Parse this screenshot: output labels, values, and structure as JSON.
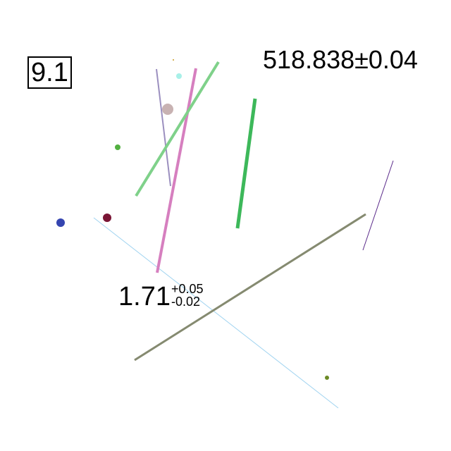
{
  "boxed_label": "9.1",
  "top_value": "518.838±0.04",
  "measurement": {
    "value": "1.71",
    "plus": "+0.05",
    "minus": "-0.02"
  },
  "colors": {
    "lavender_line": "#9b8fbf",
    "pink_line": "#d67fbf",
    "light_green_line": "#7fd18a",
    "green_line": "#3db85a",
    "purple_line": "#5a2a8a",
    "olive_line": "#858a70",
    "light_blue_line": "#9fd3f0",
    "tan_dot": "#c8b2b2",
    "cyan_dot": "#a8f0e8",
    "orange_dot": "#c89a20",
    "green_dot": "#52b040",
    "blue_dot": "#3545b0",
    "maroon_dot": "#7a1535",
    "olive_dot": "#6b8a25"
  }
}
